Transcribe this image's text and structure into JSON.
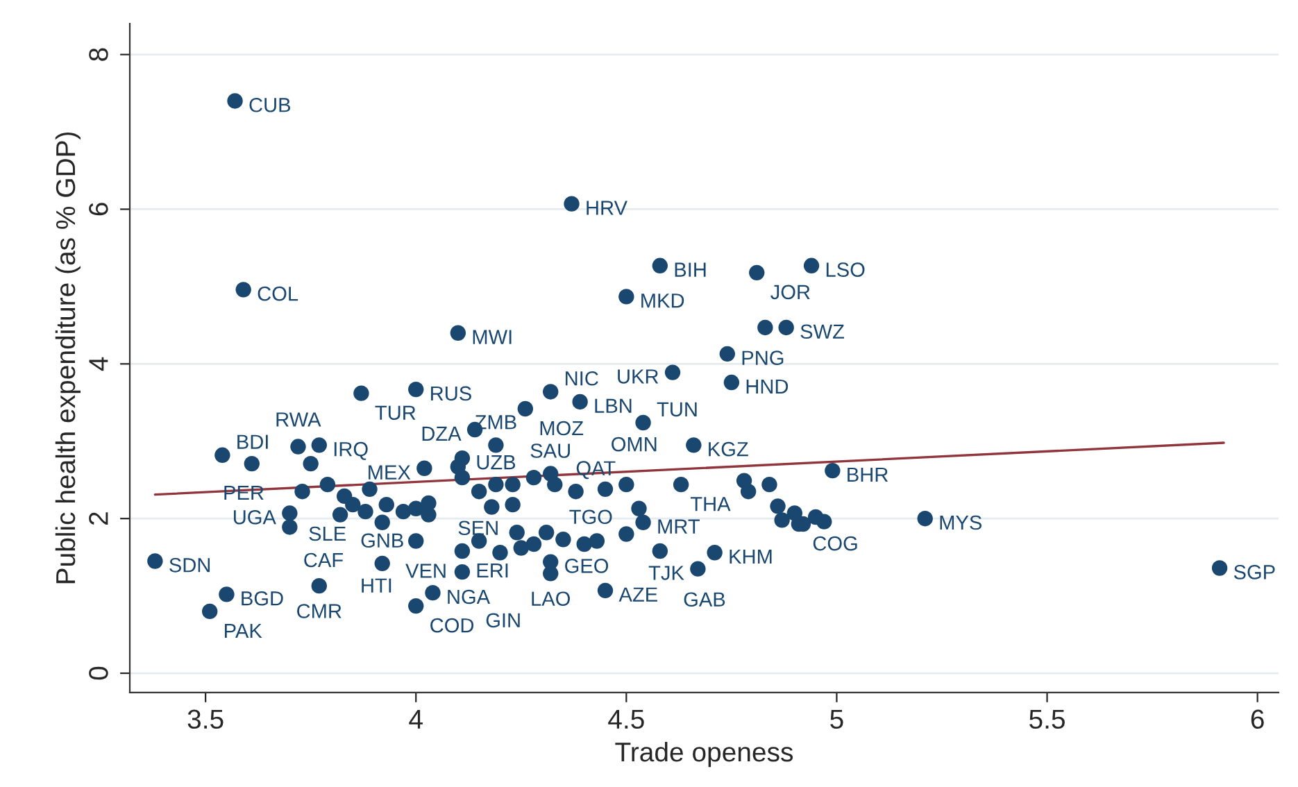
{
  "chart_data": {
    "type": "scatter",
    "xlabel": "Trade openess",
    "ylabel": "Public health expenditure (as % GDP)",
    "xlim": [
      3.32,
      6.05
    ],
    "ylim": [
      -0.25,
      8.4
    ],
    "xticks": [
      3.5,
      4,
      4.5,
      5,
      5.5,
      6
    ],
    "yticks": [
      0,
      2,
      4,
      6,
      8
    ],
    "grid": "y",
    "legend": false,
    "series": [
      {
        "type": "scatter",
        "marker": "circle",
        "color": "#1a476f",
        "x": [
          3.57,
          4.37,
          4.58,
          4.81,
          4.94,
          3.59,
          4.5,
          4.1,
          4.83,
          4.88,
          4.74,
          4.61,
          4.75,
          3.87,
          4.0,
          4.32,
          4.39,
          4.26,
          4.54,
          4.14,
          4.66,
          4.19,
          4.11,
          3.54,
          3.77,
          3.72,
          3.61,
          3.75,
          4.99,
          4.78,
          3.79,
          3.89,
          3.7,
          3.7,
          3.92,
          4.0,
          3.38,
          3.92,
          3.55,
          3.51,
          3.77,
          4.04,
          4.0,
          4.11,
          4.11,
          4.32,
          4.32,
          4.45,
          4.58,
          4.5,
          4.54,
          4.53,
          4.71,
          4.67,
          4.91,
          5.21,
          5.91,
          4.23,
          4.63,
          4.32,
          4.02,
          4.1,
          4.15,
          4.19,
          4.11,
          4.23,
          4.28,
          4.33,
          4.38,
          4.45,
          4.5,
          4.24,
          4.28,
          4.31,
          4.35,
          4.4,
          4.43,
          4.15,
          4.2,
          4.25,
          3.85,
          3.88,
          3.93,
          3.97,
          4.0,
          4.03,
          3.82,
          4.79,
          4.84,
          4.86,
          4.87,
          4.9,
          4.92,
          4.97,
          4.95,
          3.73,
          3.83,
          4.03,
          4.18
        ],
        "values": [
          7.4,
          6.07,
          5.27,
          5.18,
          5.27,
          4.96,
          4.87,
          4.4,
          4.47,
          4.47,
          4.13,
          3.89,
          3.76,
          3.62,
          3.67,
          3.64,
          3.51,
          3.42,
          3.24,
          3.15,
          2.95,
          2.95,
          2.78,
          2.82,
          2.95,
          2.93,
          2.71,
          2.71,
          2.62,
          2.49,
          2.44,
          2.38,
          2.07,
          1.89,
          1.95,
          1.71,
          1.45,
          1.42,
          1.02,
          0.8,
          1.13,
          1.04,
          0.87,
          1.31,
          1.58,
          1.44,
          1.29,
          1.07,
          1.58,
          1.8,
          1.95,
          2.13,
          1.56,
          1.35,
          1.93,
          2.0,
          1.36,
          2.18,
          2.44,
          2.58,
          2.65,
          2.67,
          2.35,
          2.44,
          2.53,
          2.44,
          2.53,
          2.44,
          2.35,
          2.38,
          2.44,
          1.82,
          1.67,
          1.82,
          1.73,
          1.67,
          1.71,
          1.71,
          1.56,
          1.62,
          2.18,
          2.09,
          2.18,
          2.09,
          2.13,
          2.05,
          2.05,
          2.35,
          2.44,
          2.16,
          1.98,
          2.07,
          1.93,
          1.96,
          2.02,
          2.35,
          2.29,
          2.2,
          2.15
        ]
      },
      {
        "type": "line",
        "color": "#90353b",
        "x": [
          3.38,
          5.92
        ],
        "values": [
          2.31,
          2.98
        ]
      }
    ],
    "annotations": [
      {
        "text": "CUB",
        "x": 3.57,
        "y": 7.4
      },
      {
        "text": "HRV",
        "x": 4.37,
        "y": 6.07
      },
      {
        "text": "BIH",
        "x": 4.58,
        "y": 5.27
      },
      {
        "text": "JOR",
        "x": 4.81,
        "y": 5.18
      },
      {
        "text": "LSO",
        "x": 4.94,
        "y": 5.27
      },
      {
        "text": "COL",
        "x": 3.59,
        "y": 4.96
      },
      {
        "text": "MKD",
        "x": 4.5,
        "y": 4.87
      },
      {
        "text": "MWI",
        "x": 4.1,
        "y": 4.4
      },
      {
        "text": "SWZ",
        "x": 4.88,
        "y": 4.47
      },
      {
        "text": "PNG",
        "x": 4.74,
        "y": 4.13
      },
      {
        "text": "UKR",
        "x": 4.61,
        "y": 3.89
      },
      {
        "text": "HND",
        "x": 4.75,
        "y": 3.76
      },
      {
        "text": "TUR",
        "x": 3.87,
        "y": 3.62
      },
      {
        "text": "RUS",
        "x": 4.0,
        "y": 3.67
      },
      {
        "text": "NIC",
        "x": 4.32,
        "y": 3.64
      },
      {
        "text": "LBN",
        "x": 4.39,
        "y": 3.51
      },
      {
        "text": "MOZ",
        "x": 4.26,
        "y": 3.42
      },
      {
        "text": "TUN",
        "x": 4.54,
        "y": 3.24
      },
      {
        "text": "DZA",
        "x": 4.14,
        "y": 3.15
      },
      {
        "text": "KGZ",
        "x": 4.66,
        "y": 2.95
      },
      {
        "text": "ZMB",
        "x": 4.19,
        "y": 2.95
      },
      {
        "text": "UZB",
        "x": 4.11,
        "y": 2.78
      },
      {
        "text": "BDI",
        "x": 3.54,
        "y": 2.82
      },
      {
        "text": "IRQ",
        "x": 3.77,
        "y": 2.95
      },
      {
        "text": "RWA",
        "x": 3.61,
        "y": 2.71
      },
      {
        "text": "PER",
        "x": 3.75,
        "y": 2.71
      },
      {
        "text": "BHR",
        "x": 4.99,
        "y": 2.62
      },
      {
        "text": "THA",
        "x": 4.78,
        "y": 2.49
      },
      {
        "text": "SLE",
        "x": 3.89,
        "y": 2.38
      },
      {
        "text": "UGA",
        "x": 3.7,
        "y": 2.07
      },
      {
        "text": "CAF",
        "x": 3.7,
        "y": 1.89
      },
      {
        "text": "VEN",
        "x": 3.92,
        "y": 1.95
      },
      {
        "text": "HTI",
        "x": 4.0,
        "y": 1.71
      },
      {
        "text": "SDN",
        "x": 3.38,
        "y": 1.45
      },
      {
        "text": "GNB",
        "x": 3.92,
        "y": 1.42
      },
      {
        "text": "BGD",
        "x": 3.55,
        "y": 1.02
      },
      {
        "text": "PAK",
        "x": 3.51,
        "y": 0.8
      },
      {
        "text": "CMR",
        "x": 3.77,
        "y": 1.13
      },
      {
        "text": "NGA",
        "x": 4.04,
        "y": 1.04
      },
      {
        "text": "COD",
        "x": 4.0,
        "y": 0.87
      },
      {
        "text": "GIN",
        "x": 4.11,
        "y": 1.31
      },
      {
        "text": "ERI",
        "x": 4.11,
        "y": 1.58
      },
      {
        "text": "GEO",
        "x": 4.32,
        "y": 1.44
      },
      {
        "text": "LAO",
        "x": 4.32,
        "y": 1.29
      },
      {
        "text": "AZE",
        "x": 4.45,
        "y": 1.07
      },
      {
        "text": "GAB",
        "x": 4.58,
        "y": 1.58
      },
      {
        "text": "TGO",
        "x": 4.5,
        "y": 1.8
      },
      {
        "text": "MRT",
        "x": 4.54,
        "y": 1.95
      },
      {
        "text": "QAT",
        "x": 4.53,
        "y": 2.13
      },
      {
        "text": "KHM",
        "x": 4.71,
        "y": 1.56
      },
      {
        "text": "TJK",
        "x": 4.67,
        "y": 1.35
      },
      {
        "text": "COG",
        "x": 4.91,
        "y": 1.93
      },
      {
        "text": "MYS",
        "x": 5.21,
        "y": 2.0
      },
      {
        "text": "SGP",
        "x": 5.91,
        "y": 1.36
      },
      {
        "text": "SEN",
        "x": 4.23,
        "y": 2.18
      },
      {
        "text": "OMN",
        "x": 4.63,
        "y": 2.44
      },
      {
        "text": "SAU",
        "x": 4.32,
        "y": 2.58
      },
      {
        "text": "MEX",
        "x": 4.02,
        "y": 2.65
      }
    ]
  }
}
